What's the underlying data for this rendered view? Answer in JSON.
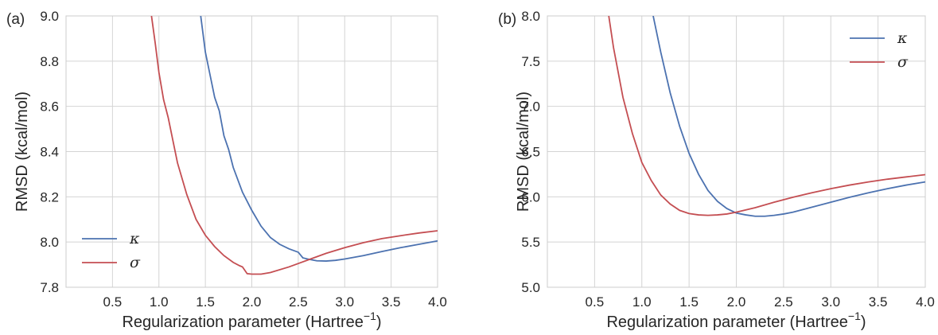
{
  "chart_data": [
    {
      "type": "line",
      "panel_label": "(a)",
      "xlabel": "Regularization parameter (Hartree",
      "xlabel_sup": "−1",
      "xlabel_close": ")",
      "ylabel": "RMSD (kcal/mol)",
      "xlim": [
        0.0,
        4.0
      ],
      "ylim": [
        7.8,
        9.0
      ],
      "xticks": [
        0.5,
        1.0,
        1.5,
        2.0,
        2.5,
        3.0,
        3.5,
        4.0
      ],
      "xtick_labels": [
        "0.5",
        "1.0",
        "1.5",
        "2.0",
        "2.5",
        "3.0",
        "3.5",
        "4.0"
      ],
      "yticks": [
        7.8,
        8.0,
        8.2,
        8.4,
        8.6,
        8.8,
        9.0
      ],
      "ytick_labels": [
        "7.8",
        "8.0",
        "8.2",
        "8.4",
        "8.6",
        "8.8",
        "9.0"
      ],
      "grid": true,
      "legend_position": "lower-left",
      "series": [
        {
          "name": "κ",
          "color": "#4c72b0",
          "x": [
            1.45,
            1.5,
            1.55,
            1.6,
            1.65,
            1.7,
            1.75,
            1.8,
            1.9,
            2.0,
            2.1,
            2.2,
            2.3,
            2.4,
            2.5,
            2.55,
            2.6,
            2.7,
            2.8,
            2.9,
            3.0,
            3.2,
            3.4,
            3.6,
            3.8,
            4.0
          ],
          "y": [
            9.0,
            8.84,
            8.74,
            8.64,
            8.58,
            8.47,
            8.41,
            8.33,
            8.22,
            8.14,
            8.07,
            8.02,
            7.99,
            7.97,
            7.955,
            7.93,
            7.925,
            7.917,
            7.916,
            7.919,
            7.925,
            7.94,
            7.958,
            7.975,
            7.99,
            8.005
          ]
        },
        {
          "name": "σ",
          "color": "#c44e52",
          "x": [
            0.92,
            0.96,
            1.0,
            1.05,
            1.1,
            1.15,
            1.2,
            1.3,
            1.4,
            1.5,
            1.6,
            1.7,
            1.8,
            1.87,
            1.9,
            1.95,
            2.0,
            2.1,
            2.2,
            2.4,
            2.6,
            2.8,
            3.0,
            3.2,
            3.4,
            3.6,
            3.8,
            4.0
          ],
          "y": [
            9.0,
            8.88,
            8.75,
            8.63,
            8.55,
            8.45,
            8.35,
            8.21,
            8.1,
            8.03,
            7.98,
            7.94,
            7.91,
            7.895,
            7.89,
            7.86,
            7.858,
            7.858,
            7.865,
            7.89,
            7.92,
            7.95,
            7.975,
            7.997,
            8.015,
            8.028,
            8.04,
            8.05
          ]
        }
      ]
    },
    {
      "type": "line",
      "panel_label": "(b)",
      "xlabel": "Regularization parameter (Hartree",
      "xlabel_sup": "−1",
      "xlabel_close": ")",
      "ylabel": "RMSD (kcal/mol)",
      "xlim": [
        0.0,
        4.0
      ],
      "ylim": [
        5.0,
        8.0
      ],
      "xticks": [
        0.5,
        1.0,
        1.5,
        2.0,
        2.5,
        3.0,
        3.5,
        4.0
      ],
      "xtick_labels": [
        "0.5",
        "1.0",
        "1.5",
        "2.0",
        "2.5",
        "3.0",
        "3.5",
        "4.0"
      ],
      "yticks": [
        5.0,
        5.5,
        6.0,
        6.5,
        7.0,
        7.5,
        8.0
      ],
      "ytick_labels": [
        "5.0",
        "5.5",
        "6.0",
        "6.5",
        "7.0",
        "7.5",
        "8.0"
      ],
      "grid": true,
      "legend_position": "upper-right",
      "series": [
        {
          "name": "κ",
          "color": "#4c72b0",
          "x": [
            1.12,
            1.2,
            1.3,
            1.4,
            1.5,
            1.6,
            1.7,
            1.8,
            1.9,
            2.0,
            2.1,
            2.2,
            2.3,
            2.4,
            2.5,
            2.6,
            2.8,
            3.0,
            3.2,
            3.4,
            3.6,
            3.8,
            4.0
          ],
          "y": [
            8.0,
            7.6,
            7.15,
            6.78,
            6.48,
            6.25,
            6.07,
            5.95,
            5.87,
            5.82,
            5.8,
            5.785,
            5.785,
            5.795,
            5.81,
            5.83,
            5.885,
            5.94,
            5.995,
            6.045,
            6.09,
            6.13,
            6.165
          ]
        },
        {
          "name": "σ",
          "color": "#c44e52",
          "x": [
            0.65,
            0.7,
            0.8,
            0.9,
            1.0,
            1.1,
            1.2,
            1.3,
            1.4,
            1.5,
            1.6,
            1.7,
            1.8,
            1.9,
            2.0,
            2.2,
            2.4,
            2.6,
            2.8,
            3.0,
            3.2,
            3.4,
            3.6,
            3.8,
            4.0
          ],
          "y": [
            8.0,
            7.65,
            7.1,
            6.7,
            6.38,
            6.18,
            6.02,
            5.92,
            5.85,
            5.815,
            5.8,
            5.795,
            5.8,
            5.81,
            5.83,
            5.88,
            5.94,
            5.995,
            6.045,
            6.09,
            6.13,
            6.165,
            6.195,
            6.22,
            6.245
          ]
        }
      ]
    }
  ]
}
